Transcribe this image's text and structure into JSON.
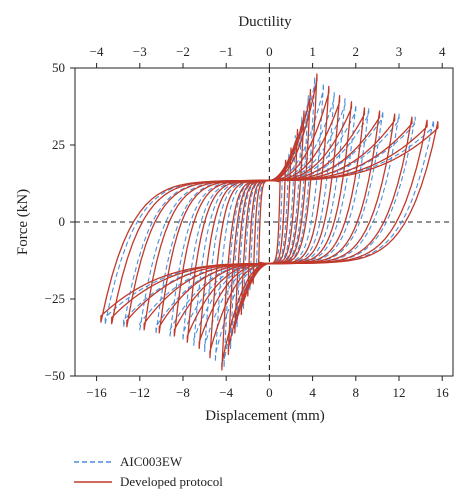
{
  "chart_data": {
    "type": "line",
    "title": "",
    "xlabel": "Displacement (mm)",
    "ylabel": "Force (kN)",
    "top_xlabel": "Ductility",
    "xlim": [
      -18,
      17
    ],
    "ylim": [
      -50,
      50
    ],
    "x_ticks": [
      -16,
      -12,
      -8,
      -4,
      0,
      4,
      8,
      12,
      16
    ],
    "y_ticks": [
      -50,
      -25,
      0,
      25,
      50
    ],
    "ductility_ticks": [
      -4,
      -3,
      -2,
      -1,
      0,
      1,
      2,
      3,
      4
    ],
    "ductility_per_mm": 0.25,
    "zero_lines": true,
    "grid": false,
    "legend_position": "bottom-left",
    "series": [
      {
        "name": "AIC003EW",
        "color": "#4a90d9",
        "dash": "dashed",
        "loops": [
          {
            "dmax": 1.2,
            "fmax": 14,
            "k": 0.35
          },
          {
            "dmax": 1.8,
            "fmax": 20,
            "k": 0.4
          },
          {
            "dmax": 2.4,
            "fmax": 26,
            "k": 0.45
          },
          {
            "dmax": 3.0,
            "fmax": 32,
            "k": 0.5
          },
          {
            "dmax": 3.6,
            "fmax": 39,
            "k": 0.55
          },
          {
            "dmax": 4.2,
            "fmax": 45,
            "k": 0.6
          },
          {
            "dmax": 5.0,
            "fmax": 43,
            "k": 0.65
          },
          {
            "dmax": 6.0,
            "fmax": 40,
            "k": 0.7
          },
          {
            "dmax": 7.0,
            "fmax": 38,
            "k": 0.75
          },
          {
            "dmax": 8.0,
            "fmax": 36,
            "k": 0.78
          },
          {
            "dmax": 9.2,
            "fmax": 35,
            "k": 0.8
          },
          {
            "dmax": 10.5,
            "fmax": 34,
            "k": 0.82
          },
          {
            "dmax": 12.0,
            "fmax": 33,
            "k": 0.85
          },
          {
            "dmax": 13.5,
            "fmax": 32,
            "k": 0.87
          },
          {
            "dmax": 15.2,
            "fmax": 31,
            "k": 0.9
          }
        ]
      },
      {
        "name": "Developed protocol",
        "color": "#c0392b",
        "dash": "solid",
        "loops": [
          {
            "dmax": 1.0,
            "fmax": 13,
            "k": 0.35
          },
          {
            "dmax": 1.5,
            "fmax": 18,
            "k": 0.38
          },
          {
            "dmax": 2.0,
            "fmax": 22,
            "k": 0.42
          },
          {
            "dmax": 2.6,
            "fmax": 28,
            "k": 0.46
          },
          {
            "dmax": 3.2,
            "fmax": 34,
            "k": 0.5
          },
          {
            "dmax": 3.8,
            "fmax": 41,
            "k": 0.55
          },
          {
            "dmax": 4.4,
            "fmax": 46,
            "k": 0.6
          },
          {
            "dmax": 5.5,
            "fmax": 42,
            "k": 0.66
          },
          {
            "dmax": 6.5,
            "fmax": 39,
            "k": 0.72
          },
          {
            "dmax": 7.6,
            "fmax": 37,
            "k": 0.76
          },
          {
            "dmax": 8.8,
            "fmax": 35,
            "k": 0.8
          },
          {
            "dmax": 10.2,
            "fmax": 34,
            "k": 0.83
          },
          {
            "dmax": 11.6,
            "fmax": 33,
            "k": 0.86
          },
          {
            "dmax": 13.2,
            "fmax": 32,
            "k": 0.88
          },
          {
            "dmax": 14.6,
            "fmax": 31,
            "k": 0.9
          },
          {
            "dmax": 15.6,
            "fmax": 30.5,
            "k": 0.92
          }
        ]
      }
    ]
  },
  "legend": {
    "items": [
      {
        "label": "AIC003EW"
      },
      {
        "label": "Developed protocol"
      }
    ]
  }
}
